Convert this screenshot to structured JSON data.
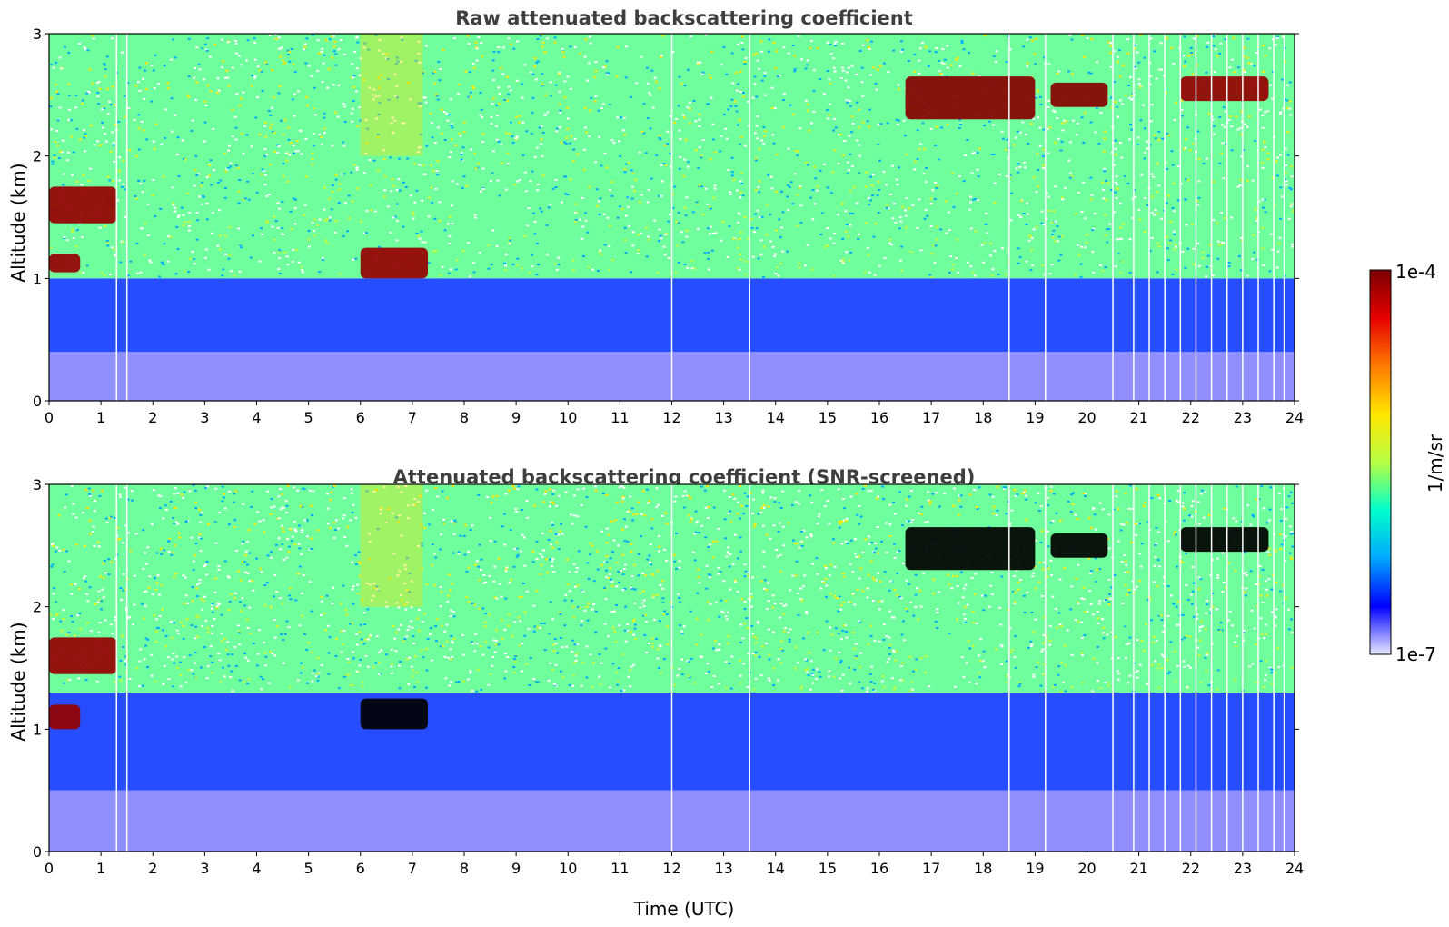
{
  "figure": {
    "colorbar": {
      "label": "1/m/sr",
      "max_label": "1e-4",
      "min_label": "1e-7",
      "vmin": 1e-07,
      "vmax": 0.0001,
      "scale": "log",
      "colormap": [
        "#e8e8ff",
        "#0000ff",
        "#00a8ff",
        "#00ffcc",
        "#b8ff44",
        "#ffe600",
        "#ff7a00",
        "#e60000",
        "#7a0000"
      ]
    }
  },
  "chart_data": [
    {
      "type": "heatmap",
      "title": "Raw attenuated backscattering coefficient",
      "xlabel": "",
      "ylabel": "Altitude (km)",
      "xlim": [
        0,
        24
      ],
      "ylim": [
        0,
        3
      ],
      "x_ticks": [
        "0",
        "1",
        "2",
        "3",
        "4",
        "5",
        "6",
        "7",
        "8",
        "9",
        "10",
        "11",
        "12",
        "13",
        "14",
        "15",
        "16",
        "17",
        "18",
        "19",
        "20",
        "21",
        "22",
        "23",
        "24"
      ],
      "y_ticks": [
        "0",
        "1",
        "2",
        "3"
      ],
      "layers": [
        {
          "altitude_km": [
            0.0,
            0.4
          ],
          "time_utc": [
            0,
            24
          ],
          "value": 1.5e-07
        },
        {
          "altitude_km": [
            0.4,
            1.0
          ],
          "time_utc": [
            0,
            24
          ],
          "value": 3e-07
        },
        {
          "altitude_km": [
            1.0,
            3.0
          ],
          "time_utc": [
            0,
            24
          ],
          "value": 2e-06
        }
      ],
      "features": [
        {
          "kind": "cloud",
          "time_utc": [
            0.0,
            1.3
          ],
          "altitude_km": [
            1.45,
            1.75
          ],
          "value": 8e-05
        },
        {
          "kind": "cloud",
          "time_utc": [
            0.0,
            0.6
          ],
          "altitude_km": [
            1.05,
            1.2
          ],
          "value": 8e-05
        },
        {
          "kind": "cloud",
          "time_utc": [
            6.0,
            7.3
          ],
          "altitude_km": [
            1.0,
            1.25
          ],
          "value": 8e-05
        },
        {
          "kind": "cloud",
          "time_utc": [
            16.5,
            19.0
          ],
          "altitude_km": [
            2.3,
            2.65
          ],
          "value": 9e-05
        },
        {
          "kind": "cloud",
          "time_utc": [
            19.3,
            20.4
          ],
          "altitude_km": [
            2.4,
            2.6
          ],
          "value": 9e-05
        },
        {
          "kind": "cloud",
          "time_utc": [
            21.8,
            23.5
          ],
          "altitude_km": [
            2.45,
            2.65
          ],
          "value": 8e-05
        },
        {
          "kind": "aerosol",
          "time_utc": [
            6.0,
            7.2
          ],
          "altitude_km": [
            2.0,
            3.0
          ],
          "value": 8e-06
        }
      ],
      "data_gaps_utc": [
        1.3,
        1.5,
        12.0,
        13.5,
        18.5,
        19.2,
        20.5,
        20.9,
        21.2,
        21.5,
        21.8,
        22.1,
        22.4,
        22.7,
        23.0,
        23.3,
        23.6,
        23.8
      ]
    },
    {
      "type": "heatmap",
      "title": "Attenuated backscattering coefficient (SNR-screened)",
      "xlabel": "Time (UTC)",
      "ylabel": "Altitude (km)",
      "xlim": [
        0,
        24
      ],
      "ylim": [
        0,
        3
      ],
      "x_ticks": [
        "0",
        "1",
        "2",
        "3",
        "4",
        "5",
        "6",
        "7",
        "8",
        "9",
        "10",
        "11",
        "12",
        "13",
        "14",
        "15",
        "16",
        "17",
        "18",
        "19",
        "20",
        "21",
        "22",
        "23",
        "24"
      ],
      "y_ticks": [
        "0",
        "1",
        "2",
        "3"
      ],
      "layers": [
        {
          "altitude_km": [
            0.0,
            0.5
          ],
          "time_utc": [
            0,
            24
          ],
          "value": 1.5e-07
        },
        {
          "altitude_km": [
            0.5,
            1.3
          ],
          "time_utc": [
            0,
            24
          ],
          "value": 3e-07
        },
        {
          "altitude_km": [
            1.3,
            3.0
          ],
          "time_utc": [
            0,
            24
          ],
          "value": 2e-06
        }
      ],
      "features": [
        {
          "kind": "cloud",
          "time_utc": [
            0.0,
            1.3
          ],
          "altitude_km": [
            1.45,
            1.75
          ],
          "value": 8e-05
        },
        {
          "kind": "cloud",
          "time_utc": [
            0.0,
            0.6
          ],
          "altitude_km": [
            1.0,
            1.2
          ],
          "value": 8e-05
        },
        {
          "kind": "cloud",
          "time_utc": [
            6.0,
            7.3
          ],
          "altitude_km": [
            1.0,
            1.25
          ],
          "value": 0.0001
        },
        {
          "kind": "cloud",
          "time_utc": [
            16.5,
            19.0
          ],
          "altitude_km": [
            2.3,
            2.65
          ],
          "value": 0.0001
        },
        {
          "kind": "cloud",
          "time_utc": [
            19.3,
            20.4
          ],
          "altitude_km": [
            2.4,
            2.6
          ],
          "value": 0.0001
        },
        {
          "kind": "cloud",
          "time_utc": [
            21.8,
            23.5
          ],
          "altitude_km": [
            2.45,
            2.65
          ],
          "value": 0.0001
        },
        {
          "kind": "aerosol",
          "time_utc": [
            6.0,
            7.2
          ],
          "altitude_km": [
            2.0,
            3.0
          ],
          "value": 8e-06
        }
      ],
      "data_gaps_utc": [
        1.3,
        1.5,
        12.0,
        13.5,
        18.5,
        19.2,
        20.5,
        20.9,
        21.2,
        21.5,
        21.8,
        22.1,
        22.4,
        22.7,
        23.0,
        23.3,
        23.6,
        23.8
      ]
    }
  ]
}
